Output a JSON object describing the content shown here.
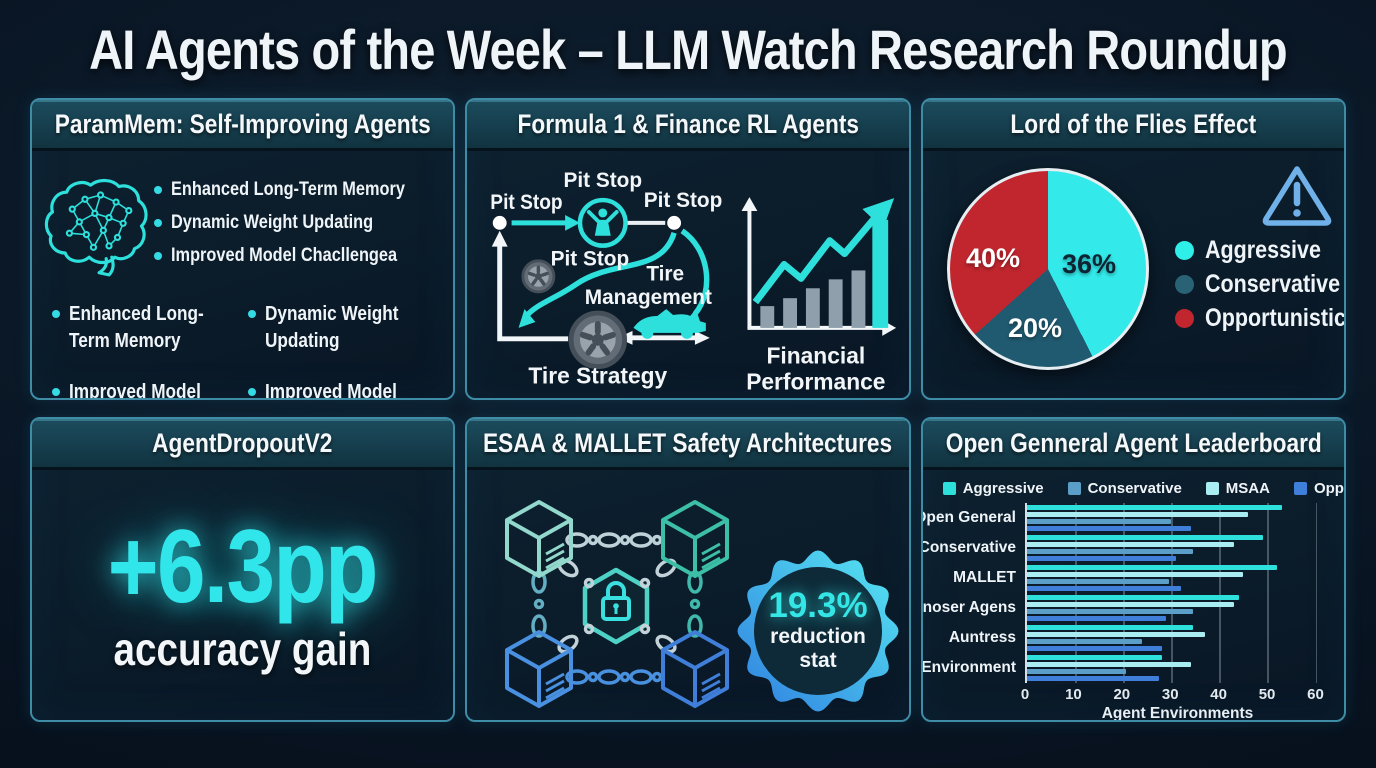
{
  "page_title": "AI Agents of the Week – LLM Watch Research Roundup",
  "colors": {
    "accent_cyan": "#2ee0dc",
    "panel_border": "#3e8ca6",
    "pale_cyan": "#a9ecf2",
    "steel_blue": "#5b9fc8",
    "blue": "#3f7fd9",
    "red": "#c1262e",
    "dark_teal": "#205a70",
    "warning_blue": "#6fb1e8"
  },
  "panels": {
    "parammem": {
      "title": "ParamMem: Self-Improving Agents",
      "icon": "brain-network-icon",
      "top_bullets": [
        "Enhanced Long-Term Memory",
        "Dynamic Weight Updating",
        "Improved Model Chacllengea"
      ],
      "grid_bullets": [
        "Enhanced Long-Term Memory",
        "Dynamic Weight Updating",
        "Improved Model Generalization",
        "Improved Model Generalization"
      ]
    },
    "formula_finance": {
      "title": "Formula 1 & Finance RL Agents",
      "pit_labels": [
        "Pit Stop",
        "Pit Stop",
        "Pit Stop",
        "Pit Stop"
      ],
      "tire_line1": "Tire",
      "tire_line2": "Management",
      "tire_strategy": "Tire Strategy",
      "fin_line1": "Financial",
      "fin_line2": "Performance"
    },
    "lord_flies": {
      "title": "Lord of the Flies Effect",
      "legend": [
        {
          "label": "Aggressive",
          "color": "#2ff0e8"
        },
        {
          "label": "Conservative",
          "color": "#2a6275"
        },
        {
          "label": "Opportunistic",
          "color": "#c1262e"
        }
      ]
    },
    "agentdropout": {
      "title": "AgentDropoutV2",
      "stat": "+6.3pp",
      "caption": "accuracy gain"
    },
    "esaa": {
      "title": "ESAA & MALLET Safety Architectures",
      "badge_value": "19.3%",
      "badge_line1": "reduction",
      "badge_line2": "stat"
    },
    "leaderboard": {
      "title": "Open Genneral Agent Leaderboard"
    }
  },
  "chart_data": [
    {
      "type": "pie",
      "title": "Lord of the Flies Effect",
      "start_deg": 0,
      "legend_position": "right",
      "slices": [
        {
          "label": "Aggressive",
          "value_label": "36%",
          "value": 36,
          "sweep_deg": 153,
          "color": "#33e9ea",
          "label_color": "#0c2433"
        },
        {
          "label": "Conservative",
          "value_label": "20%",
          "value": 20,
          "sweep_deg": 75,
          "color": "#205a70",
          "label_color": "#ffffff"
        },
        {
          "label": "Opportunistic",
          "value_label": "40%",
          "value": 40,
          "sweep_deg": 132,
          "color": "#c1262e",
          "label_color": "#ffffff"
        }
      ]
    },
    {
      "type": "bar",
      "orientation": "horizontal",
      "title": "Open Genneral Agent Leaderboard",
      "categories": [
        "Open General",
        "Conservative",
        "MALLET",
        "Cornoser Agens",
        "Auntress",
        "Environment"
      ],
      "legend_order": [
        "Aggressive",
        "Conservative",
        "MSAA",
        "Opportunistic"
      ],
      "series": [
        {
          "name": "Aggressive",
          "color": "#2ee0dc",
          "values": [
            53,
            49,
            52,
            44,
            34.5,
            28
          ]
        },
        {
          "name": "MSAA",
          "color": "#a9ecf2",
          "values": [
            46,
            43,
            45,
            43,
            37,
            34
          ]
        },
        {
          "name": "Conservative",
          "color": "#5b9fc8",
          "values": [
            30,
            34.5,
            29.5,
            34.5,
            24,
            20.5
          ]
        },
        {
          "name": "Opportunistic",
          "color": "#3f7fd9",
          "values": [
            34,
            31,
            32,
            29,
            28,
            27.5
          ]
        }
      ],
      "xlabel": "Agent Environments",
      "xticks": [
        0,
        10,
        20,
        30,
        40,
        50,
        60
      ],
      "xmax": 63,
      "grid": true,
      "legend_position": "top"
    }
  ]
}
